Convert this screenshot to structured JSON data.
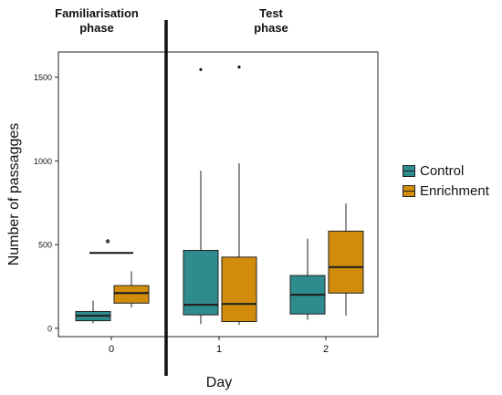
{
  "chart_data": {
    "type": "boxplot",
    "phases": [
      "Familiarisation\nphase",
      "Test\nphase"
    ],
    "xlabel": "Day",
    "ylabel": "Number of passagges",
    "categories": [
      "0",
      "1",
      "2"
    ],
    "y_ticks": [
      0,
      500,
      1000,
      1500
    ],
    "ylim": [
      -50,
      1650
    ],
    "grid": false,
    "legend_position": "right",
    "colors": {
      "Control": "#2E8B8E",
      "Enrichment": "#D18C0B"
    },
    "series": [
      {
        "name": "Control",
        "boxes": [
          {
            "day": "0",
            "min": 30,
            "q1": 45,
            "median": 75,
            "q3": 100,
            "max": 165,
            "outliers": []
          },
          {
            "day": "1",
            "min": 25,
            "q1": 80,
            "median": 140,
            "q3": 465,
            "max": 940,
            "outliers": [
              1545
            ]
          },
          {
            "day": "2",
            "min": 50,
            "q1": 85,
            "median": 200,
            "q3": 315,
            "max": 535,
            "outliers": []
          }
        ]
      },
      {
        "name": "Enrichment",
        "boxes": [
          {
            "day": "0",
            "min": 125,
            "q1": 150,
            "median": 210,
            "q3": 255,
            "max": 340,
            "outliers": []
          },
          {
            "day": "1",
            "min": 20,
            "q1": 40,
            "median": 145,
            "q3": 425,
            "max": 985,
            "outliers": [
              1560
            ]
          },
          {
            "day": "2",
            "min": 75,
            "q1": 210,
            "median": 365,
            "q3": 580,
            "max": 745,
            "outliers": []
          }
        ]
      }
    ],
    "annotations": [
      {
        "text": "*",
        "day": "0",
        "y": 450,
        "type": "significance"
      }
    ]
  }
}
